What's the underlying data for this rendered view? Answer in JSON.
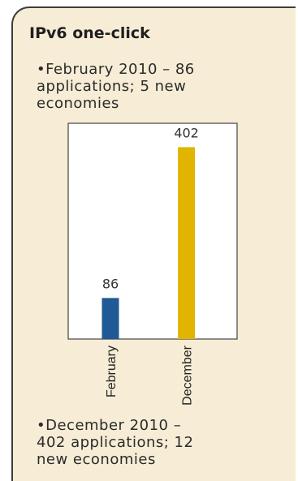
{
  "title": "IPv6 one-click",
  "notes": {
    "first": "•February 2010 – 86\napplications; 5 new\neconomies",
    "second": "•December 2010 –\n402 applications; 12\nnew economies"
  },
  "chart_data": {
    "type": "bar",
    "categories": [
      "February",
      "December"
    ],
    "values": [
      86,
      402
    ],
    "colors": [
      "#1f5a96",
      "#e0b400"
    ],
    "title": "",
    "xlabel": "",
    "ylabel": "",
    "ylim": [
      0,
      452
    ],
    "grid": false,
    "legend": "none"
  },
  "colors": {
    "background": "#f7edd6",
    "plot_background": "#ffffff",
    "border": "#3c3c3c"
  }
}
